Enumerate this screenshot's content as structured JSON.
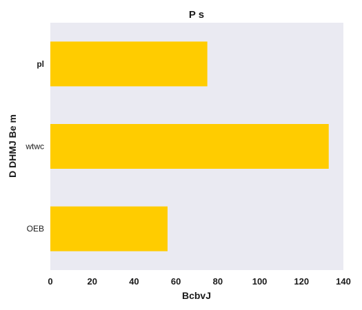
{
  "colors": {
    "bar": "#FFCC00",
    "plot_background": "#EAEAF2",
    "text": "#1a1a1a"
  },
  "chart_data": {
    "type": "bar",
    "orientation": "horizontal",
    "title": "P s",
    "xlabel": "BcbvJ",
    "ylabel": "D DHMJ  Be m",
    "categories": [
      "pl",
      "wtwc",
      "OEB"
    ],
    "values": [
      75,
      133,
      56
    ],
    "xlim": [
      0,
      140
    ],
    "xticks": [
      0,
      20,
      40,
      60,
      80,
      100,
      120,
      140
    ],
    "grid": false,
    "legend": "none"
  }
}
